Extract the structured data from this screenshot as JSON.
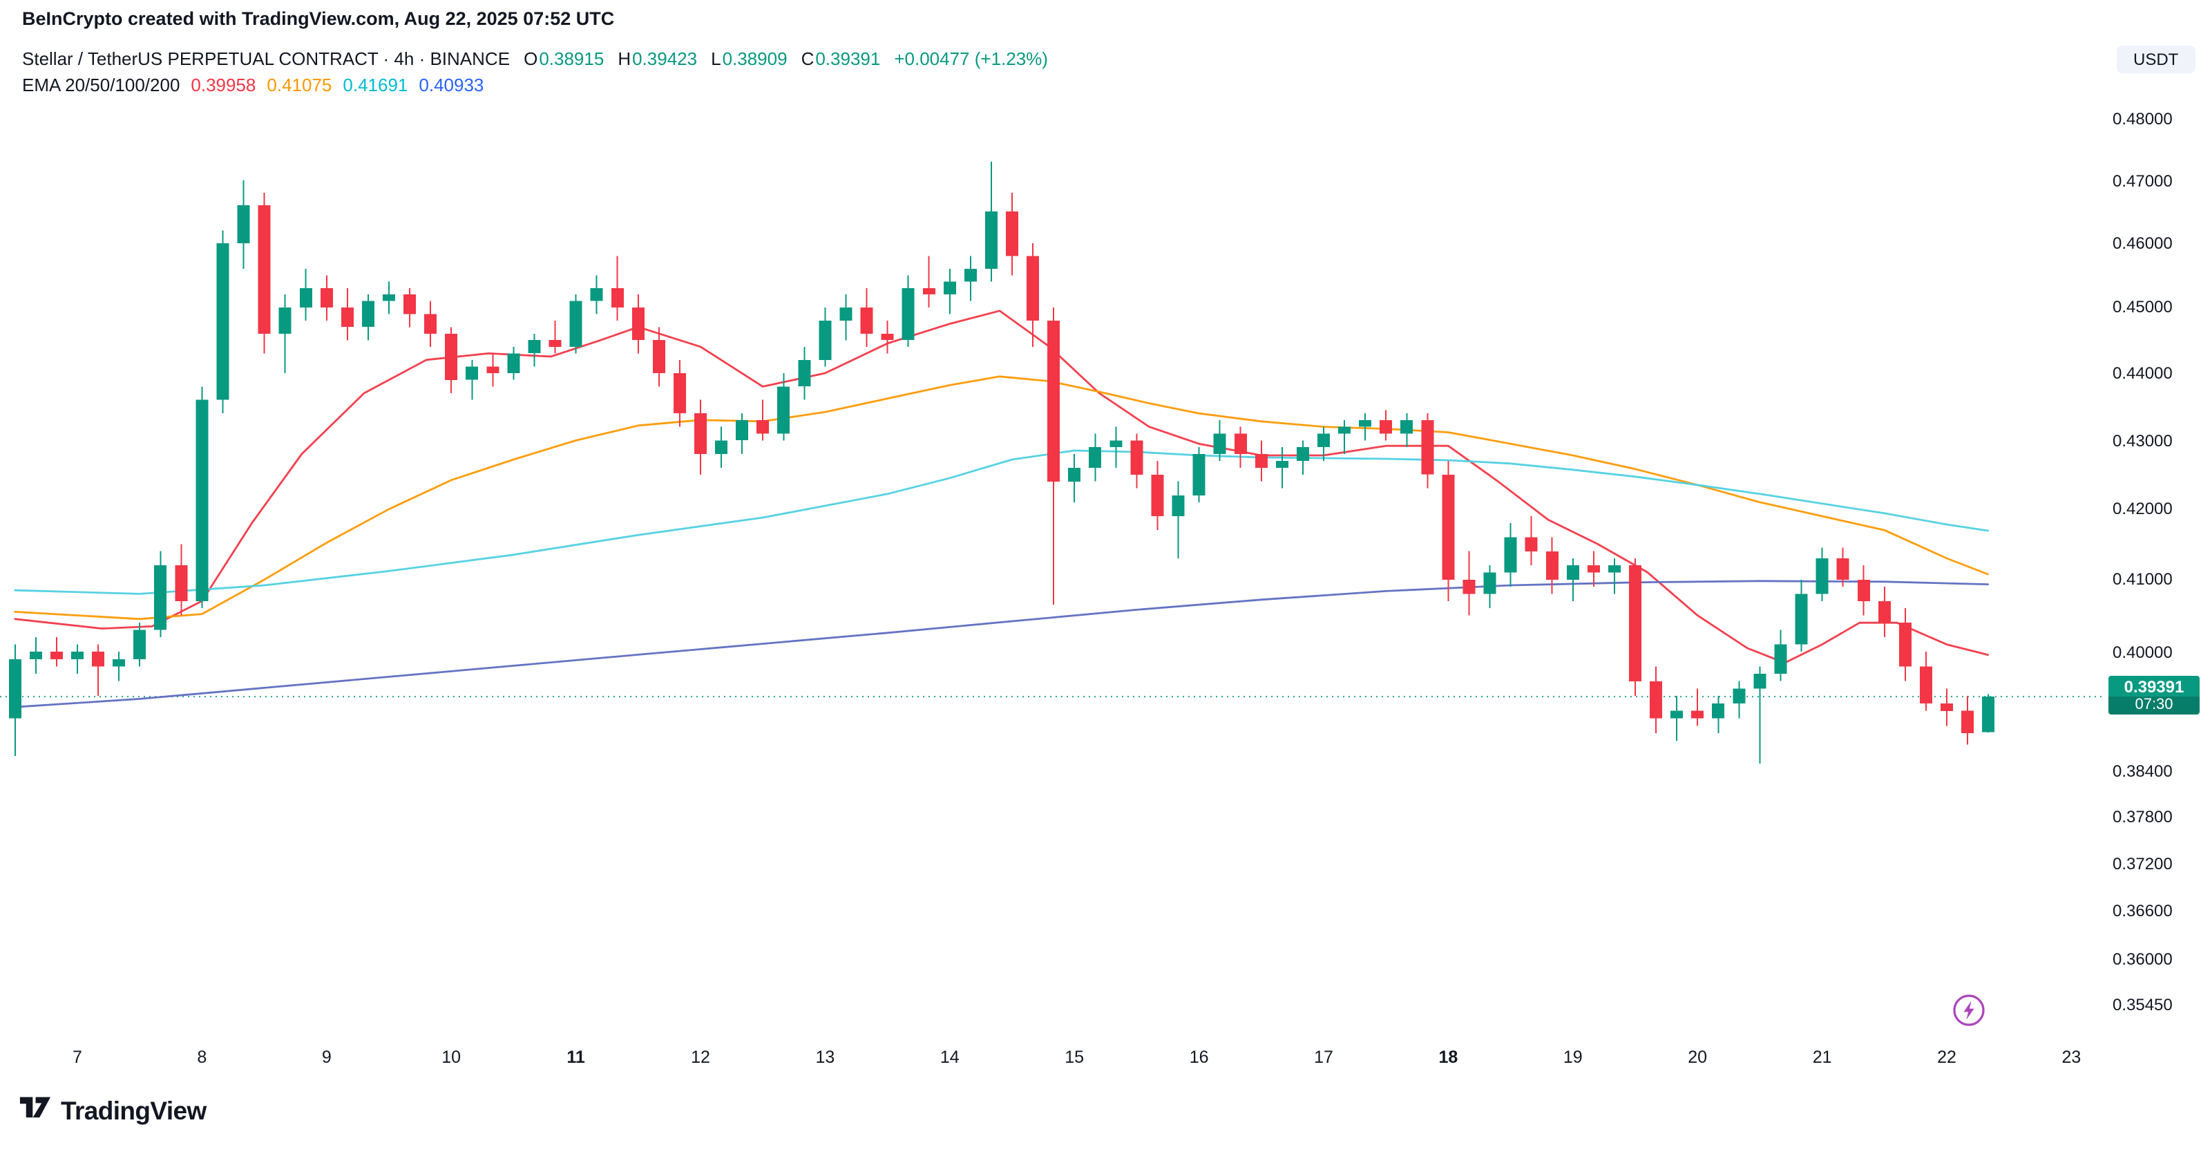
{
  "header": {
    "credit": "BeInCrypto created with TradingView.com, Aug 22, 2025 07:52 UTC"
  },
  "legend": {
    "symbol": "Stellar / TetherUS PERPETUAL CONTRACT · 4h · BINANCE",
    "ohlc": {
      "o_label": "O",
      "o": "0.38915",
      "h_label": "H",
      "h": "0.39423",
      "l_label": "L",
      "l": "0.38909",
      "c_label": "C",
      "c": "0.39391",
      "change": "+0.00477 (+1.23%)",
      "up_color": "#089981"
    },
    "ema": {
      "label": "EMA 20/50/100/200",
      "values": [
        {
          "text": "0.39958",
          "color": "#F23645"
        },
        {
          "text": "0.41075",
          "color": "#FF9800"
        },
        {
          "text": "0.41691",
          "color": "#00BCD4"
        },
        {
          "text": "0.40933",
          "color": "#2962FF"
        }
      ]
    }
  },
  "axis": {
    "currency_button": "USDT",
    "price_ticks": [
      {
        "label": "0.48000",
        "value": 0.48
      },
      {
        "label": "0.47000",
        "value": 0.47
      },
      {
        "label": "0.46000",
        "value": 0.46
      },
      {
        "label": "0.45000",
        "value": 0.45
      },
      {
        "label": "0.44000",
        "value": 0.44
      },
      {
        "label": "0.43000",
        "value": 0.43
      },
      {
        "label": "0.42000",
        "value": 0.42
      },
      {
        "label": "0.41000",
        "value": 0.41
      },
      {
        "label": "0.40000",
        "value": 0.4
      },
      {
        "label": "0.38400",
        "value": 0.384
      },
      {
        "label": "0.37800",
        "value": 0.378
      },
      {
        "label": "0.37200",
        "value": 0.372
      },
      {
        "label": "0.36600",
        "value": 0.366
      },
      {
        "label": "0.36000",
        "value": 0.36
      },
      {
        "label": "0.35450",
        "value": 0.3545
      }
    ],
    "time_ticks": [
      {
        "label": "7",
        "day": 7,
        "bold": false
      },
      {
        "label": "8",
        "day": 8,
        "bold": false
      },
      {
        "label": "9",
        "day": 9,
        "bold": false
      },
      {
        "label": "10",
        "day": 10,
        "bold": false
      },
      {
        "label": "11",
        "day": 11,
        "bold": true
      },
      {
        "label": "12",
        "day": 12,
        "bold": false
      },
      {
        "label": "13",
        "day": 13,
        "bold": false
      },
      {
        "label": "14",
        "day": 14,
        "bold": false
      },
      {
        "label": "15",
        "day": 15,
        "bold": false
      },
      {
        "label": "16",
        "day": 16,
        "bold": false
      },
      {
        "label": "17",
        "day": 17,
        "bold": false
      },
      {
        "label": "18",
        "day": 18,
        "bold": true
      },
      {
        "label": "19",
        "day": 19,
        "bold": false
      },
      {
        "label": "20",
        "day": 20,
        "bold": false
      },
      {
        "label": "21",
        "day": 21,
        "bold": false
      },
      {
        "label": "22",
        "day": 22,
        "bold": false
      },
      {
        "label": "23",
        "day": 23,
        "bold": false
      }
    ]
  },
  "price_line": {
    "value": 0.39391,
    "label": "0.39391",
    "countdown": "07:30",
    "color": "#089981"
  },
  "branding": {
    "logo_text": "TradingView"
  },
  "icons": {
    "flash_color": "#AB47BC"
  },
  "chart_data": {
    "type": "candlestick",
    "title": "Stellar / TetherUS PERPETUAL CONTRACT",
    "exchange": "BINANCE",
    "interval": "4h",
    "quote_currency": "USDT",
    "scale": "log",
    "x_unit": "day of August 2025",
    "start_day": 6.5,
    "candle_interval_days": 0.166667,
    "y_range_prices": [
      0.3545,
      0.48
    ],
    "last_price": 0.39391,
    "up_color": "#089981",
    "down_color": "#F23645",
    "candles": [
      [
        0.391,
        0.401,
        0.386,
        0.399
      ],
      [
        0.399,
        0.402,
        0.397,
        0.4
      ],
      [
        0.4,
        0.402,
        0.398,
        0.399
      ],
      [
        0.399,
        0.401,
        0.397,
        0.4
      ],
      [
        0.4,
        0.401,
        0.394,
        0.398
      ],
      [
        0.398,
        0.4,
        0.396,
        0.399
      ],
      [
        0.399,
        0.404,
        0.398,
        0.403
      ],
      [
        0.403,
        0.414,
        0.402,
        0.412
      ],
      [
        0.412,
        0.415,
        0.405,
        0.407
      ],
      [
        0.407,
        0.438,
        0.406,
        0.436
      ],
      [
        0.436,
        0.462,
        0.434,
        0.46
      ],
      [
        0.46,
        0.47,
        0.456,
        0.466
      ],
      [
        0.466,
        0.468,
        0.443,
        0.446
      ],
      [
        0.446,
        0.452,
        0.44,
        0.45
      ],
      [
        0.45,
        0.456,
        0.448,
        0.453
      ],
      [
        0.453,
        0.455,
        0.448,
        0.45
      ],
      [
        0.45,
        0.453,
        0.445,
        0.447
      ],
      [
        0.447,
        0.452,
        0.445,
        0.451
      ],
      [
        0.451,
        0.454,
        0.449,
        0.452
      ],
      [
        0.452,
        0.453,
        0.447,
        0.449
      ],
      [
        0.449,
        0.451,
        0.444,
        0.446
      ],
      [
        0.446,
        0.447,
        0.437,
        0.439
      ],
      [
        0.439,
        0.442,
        0.436,
        0.441
      ],
      [
        0.441,
        0.443,
        0.438,
        0.44
      ],
      [
        0.44,
        0.444,
        0.439,
        0.443
      ],
      [
        0.443,
        0.446,
        0.441,
        0.445
      ],
      [
        0.445,
        0.448,
        0.443,
        0.444
      ],
      [
        0.444,
        0.452,
        0.443,
        0.451
      ],
      [
        0.451,
        0.455,
        0.449,
        0.453
      ],
      [
        0.453,
        0.458,
        0.448,
        0.45
      ],
      [
        0.45,
        0.452,
        0.443,
        0.445
      ],
      [
        0.445,
        0.447,
        0.438,
        0.44
      ],
      [
        0.44,
        0.442,
        0.432,
        0.434
      ],
      [
        0.434,
        0.436,
        0.425,
        0.428
      ],
      [
        0.428,
        0.432,
        0.426,
        0.43
      ],
      [
        0.43,
        0.434,
        0.428,
        0.433
      ],
      [
        0.433,
        0.436,
        0.43,
        0.431
      ],
      [
        0.431,
        0.44,
        0.43,
        0.438
      ],
      [
        0.438,
        0.444,
        0.436,
        0.442
      ],
      [
        0.442,
        0.45,
        0.441,
        0.448
      ],
      [
        0.448,
        0.452,
        0.445,
        0.45
      ],
      [
        0.45,
        0.453,
        0.444,
        0.446
      ],
      [
        0.446,
        0.448,
        0.443,
        0.445
      ],
      [
        0.445,
        0.455,
        0.444,
        0.453
      ],
      [
        0.453,
        0.458,
        0.45,
        0.452
      ],
      [
        0.452,
        0.456,
        0.449,
        0.454
      ],
      [
        0.454,
        0.458,
        0.451,
        0.456
      ],
      [
        0.456,
        0.473,
        0.454,
        0.465
      ],
      [
        0.465,
        0.468,
        0.455,
        0.458
      ],
      [
        0.458,
        0.46,
        0.444,
        0.448
      ],
      [
        0.448,
        0.45,
        0.4065,
        0.424
      ],
      [
        0.424,
        0.428,
        0.421,
        0.426
      ],
      [
        0.426,
        0.431,
        0.424,
        0.429
      ],
      [
        0.429,
        0.432,
        0.426,
        0.43
      ],
      [
        0.43,
        0.431,
        0.423,
        0.425
      ],
      [
        0.425,
        0.427,
        0.417,
        0.419
      ],
      [
        0.419,
        0.424,
        0.413,
        0.422
      ],
      [
        0.422,
        0.429,
        0.421,
        0.428
      ],
      [
        0.428,
        0.433,
        0.427,
        0.431
      ],
      [
        0.431,
        0.432,
        0.426,
        0.428
      ],
      [
        0.428,
        0.43,
        0.424,
        0.426
      ],
      [
        0.426,
        0.429,
        0.423,
        0.427
      ],
      [
        0.427,
        0.43,
        0.425,
        0.429
      ],
      [
        0.429,
        0.432,
        0.427,
        0.431
      ],
      [
        0.431,
        0.433,
        0.428,
        0.432
      ],
      [
        0.432,
        0.434,
        0.43,
        0.433
      ],
      [
        0.433,
        0.4345,
        0.43,
        0.431
      ],
      [
        0.431,
        0.434,
        0.429,
        0.433
      ],
      [
        0.433,
        0.434,
        0.423,
        0.425
      ],
      [
        0.425,
        0.427,
        0.407,
        0.41
      ],
      [
        0.41,
        0.414,
        0.405,
        0.408
      ],
      [
        0.408,
        0.412,
        0.406,
        0.411
      ],
      [
        0.411,
        0.418,
        0.409,
        0.416
      ],
      [
        0.416,
        0.419,
        0.412,
        0.414
      ],
      [
        0.414,
        0.416,
        0.408,
        0.41
      ],
      [
        0.41,
        0.413,
        0.407,
        0.412
      ],
      [
        0.412,
        0.414,
        0.409,
        0.411
      ],
      [
        0.411,
        0.413,
        0.408,
        0.412
      ],
      [
        0.412,
        0.413,
        0.394,
        0.396
      ],
      [
        0.396,
        0.398,
        0.389,
        0.391
      ],
      [
        0.391,
        0.394,
        0.388,
        0.392
      ],
      [
        0.392,
        0.395,
        0.39,
        0.391
      ],
      [
        0.391,
        0.394,
        0.389,
        0.393
      ],
      [
        0.393,
        0.396,
        0.391,
        0.395
      ],
      [
        0.395,
        0.398,
        0.385,
        0.397
      ],
      [
        0.397,
        0.403,
        0.396,
        0.401
      ],
      [
        0.401,
        0.41,
        0.4,
        0.408
      ],
      [
        0.408,
        0.4145,
        0.407,
        0.413
      ],
      [
        0.413,
        0.4145,
        0.409,
        0.41
      ],
      [
        0.41,
        0.412,
        0.405,
        0.407
      ],
      [
        0.407,
        0.409,
        0.402,
        0.404
      ],
      [
        0.404,
        0.406,
        0.396,
        0.398
      ],
      [
        0.398,
        0.4,
        0.392,
        0.393
      ],
      [
        0.393,
        0.395,
        0.39,
        0.392
      ],
      [
        0.392,
        0.394,
        0.3875,
        0.389
      ],
      [
        0.38915,
        0.39423,
        0.38909,
        0.39391
      ]
    ],
    "emas": [
      {
        "period": 20,
        "color": "#F23645",
        "last_value": 0.39958,
        "points": [
          [
            6.5,
            0.4045
          ],
          [
            7.2,
            0.4032
          ],
          [
            7.6,
            0.4035
          ],
          [
            8.0,
            0.407
          ],
          [
            8.4,
            0.418
          ],
          [
            8.8,
            0.428
          ],
          [
            9.3,
            0.437
          ],
          [
            9.8,
            0.442
          ],
          [
            10.3,
            0.443
          ],
          [
            10.8,
            0.4425
          ],
          [
            11.2,
            0.445
          ],
          [
            11.5,
            0.447
          ],
          [
            12.0,
            0.444
          ],
          [
            12.5,
            0.438
          ],
          [
            13.0,
            0.44
          ],
          [
            13.5,
            0.4445
          ],
          [
            14.0,
            0.4475
          ],
          [
            14.4,
            0.4495
          ],
          [
            14.8,
            0.444
          ],
          [
            15.2,
            0.437
          ],
          [
            15.6,
            0.432
          ],
          [
            16.0,
            0.4295
          ],
          [
            16.5,
            0.4278
          ],
          [
            17.0,
            0.4278
          ],
          [
            17.5,
            0.4292
          ],
          [
            18.0,
            0.4292
          ],
          [
            18.4,
            0.424
          ],
          [
            18.8,
            0.4185
          ],
          [
            19.2,
            0.415
          ],
          [
            19.6,
            0.411
          ],
          [
            20.0,
            0.405
          ],
          [
            20.4,
            0.4005
          ],
          [
            20.7,
            0.3985
          ],
          [
            21.0,
            0.401
          ],
          [
            21.3,
            0.404
          ],
          [
            21.6,
            0.404
          ],
          [
            22.0,
            0.401
          ],
          [
            22.33,
            0.39958
          ]
        ]
      },
      {
        "period": 50,
        "color": "#FF9800",
        "last_value": 0.41075,
        "points": [
          [
            6.5,
            0.4055
          ],
          [
            7.5,
            0.4045
          ],
          [
            8.0,
            0.4052
          ],
          [
            8.5,
            0.41
          ],
          [
            9.0,
            0.4152
          ],
          [
            9.5,
            0.42
          ],
          [
            10.0,
            0.4242
          ],
          [
            10.5,
            0.4272
          ],
          [
            11.0,
            0.43
          ],
          [
            11.5,
            0.4322
          ],
          [
            12.0,
            0.433
          ],
          [
            12.5,
            0.4328
          ],
          [
            13.0,
            0.4342
          ],
          [
            13.5,
            0.4362
          ],
          [
            14.0,
            0.4382
          ],
          [
            14.4,
            0.4395
          ],
          [
            14.8,
            0.4388
          ],
          [
            15.2,
            0.4372
          ],
          [
            15.6,
            0.4355
          ],
          [
            16.0,
            0.434
          ],
          [
            16.5,
            0.4328
          ],
          [
            17.0,
            0.432
          ],
          [
            17.5,
            0.4317
          ],
          [
            18.0,
            0.4312
          ],
          [
            18.5,
            0.4295
          ],
          [
            19.0,
            0.4278
          ],
          [
            19.5,
            0.4258
          ],
          [
            20.0,
            0.4235
          ],
          [
            20.5,
            0.421
          ],
          [
            21.0,
            0.419
          ],
          [
            21.5,
            0.417
          ],
          [
            22.0,
            0.413
          ],
          [
            22.33,
            0.41075
          ]
        ]
      },
      {
        "period": 100,
        "color": "#4DD0E1",
        "last_value": 0.41691,
        "points": [
          [
            6.5,
            0.4085
          ],
          [
            7.5,
            0.408
          ],
          [
            8.5,
            0.4092
          ],
          [
            9.5,
            0.4112
          ],
          [
            10.5,
            0.4135
          ],
          [
            11.5,
            0.4163
          ],
          [
            12.5,
            0.4188
          ],
          [
            13.5,
            0.4222
          ],
          [
            14.0,
            0.4245
          ],
          [
            14.5,
            0.4272
          ],
          [
            15.0,
            0.4285
          ],
          [
            15.5,
            0.4283
          ],
          [
            16.0,
            0.4278
          ],
          [
            16.5,
            0.4275
          ],
          [
            17.0,
            0.4274
          ],
          [
            17.5,
            0.4273
          ],
          [
            18.0,
            0.4271
          ],
          [
            18.5,
            0.4266
          ],
          [
            19.0,
            0.4257
          ],
          [
            19.5,
            0.4247
          ],
          [
            20.0,
            0.4235
          ],
          [
            20.5,
            0.4222
          ],
          [
            21.0,
            0.4208
          ],
          [
            21.5,
            0.4194
          ],
          [
            22.0,
            0.4178
          ],
          [
            22.33,
            0.41691
          ]
        ]
      },
      {
        "period": 200,
        "color": "#5C6BC0",
        "last_value": 0.40933,
        "points": [
          [
            6.5,
            0.3925
          ],
          [
            7.5,
            0.3936
          ],
          [
            8.5,
            0.3951
          ],
          [
            9.5,
            0.3966
          ],
          [
            10.5,
            0.3981
          ],
          [
            11.5,
            0.3996
          ],
          [
            12.5,
            0.4011
          ],
          [
            13.5,
            0.4026
          ],
          [
            14.5,
            0.4042
          ],
          [
            15.5,
            0.4058
          ],
          [
            16.5,
            0.4072
          ],
          [
            17.5,
            0.4084
          ],
          [
            18.5,
            0.4092
          ],
          [
            19.5,
            0.4096
          ],
          [
            20.5,
            0.4098
          ],
          [
            21.5,
            0.4097
          ],
          [
            22.33,
            0.40933
          ]
        ]
      }
    ]
  }
}
